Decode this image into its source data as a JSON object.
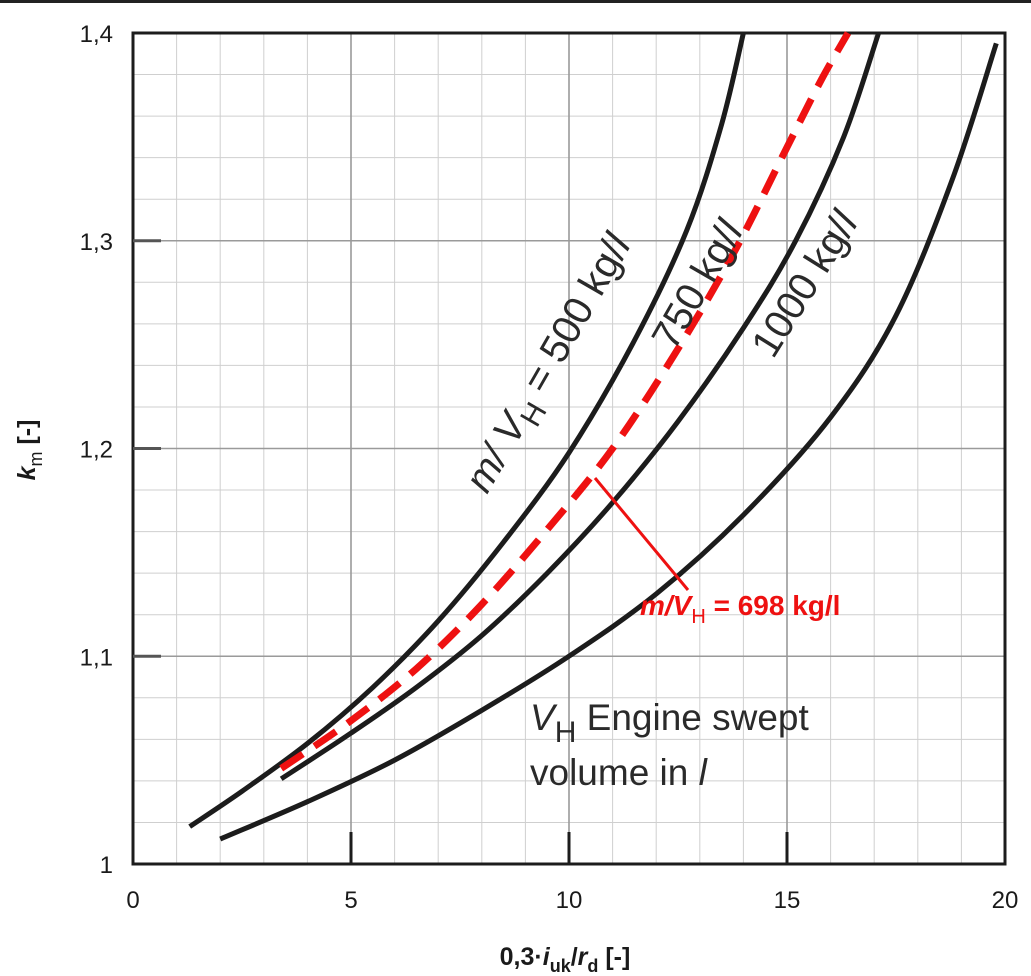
{
  "chart_data": {
    "type": "line",
    "xlabel_parts": {
      "prefix": "0,3·",
      "i": "i",
      "i_sub": "uk",
      "slash": "/",
      "r": "r",
      "r_sub": "d",
      "unit": " [-]"
    },
    "ylabel_parts": {
      "k": "k",
      "k_sub": "m",
      "unit": " [-]"
    },
    "xlim": [
      0,
      20
    ],
    "ylim": [
      1,
      1.4
    ],
    "x_ticks": [
      "0",
      "5",
      "10",
      "15",
      "20"
    ],
    "y_ticks": [
      "1",
      "1,1",
      "1,2",
      "1,3",
      "1,4"
    ],
    "grid": true,
    "series": [
      {
        "name": "500 kg/l",
        "color": "#1c1c1c",
        "style": "solid",
        "x": [
          1.3,
          2.5,
          4,
          5.5,
          7,
          8.5,
          10,
          11.5,
          12.7,
          13.5,
          14.0
        ],
        "y": [
          1.018,
          1.035,
          1.058,
          1.085,
          1.117,
          1.155,
          1.198,
          1.252,
          1.305,
          1.356,
          1.4
        ]
      },
      {
        "name": "750 kg/l",
        "color": "#1c1c1c",
        "style": "solid",
        "x": [
          3.4,
          5,
          6.5,
          8,
          9.5,
          11,
          12.5,
          14,
          15.2,
          16.3,
          17.1
        ],
        "y": [
          1.041,
          1.063,
          1.085,
          1.11,
          1.14,
          1.174,
          1.213,
          1.258,
          1.3,
          1.35,
          1.4
        ]
      },
      {
        "name": "1000 kg/l",
        "color": "#1c1c1c",
        "style": "solid",
        "x": [
          2.0,
          4,
          6,
          8,
          10,
          12,
          14,
          16,
          17.5,
          18.8,
          19.8
        ],
        "y": [
          1.012,
          1.03,
          1.05,
          1.074,
          1.1,
          1.13,
          1.168,
          1.215,
          1.264,
          1.33,
          1.395
        ]
      },
      {
        "name": "698 kg/l",
        "color": "#ee1111",
        "style": "dashed",
        "x": [
          3.4,
          5,
          6.5,
          8,
          9.5,
          11,
          12.5,
          13.8,
          15.0,
          15.8,
          16.4
        ],
        "y": [
          1.046,
          1.069,
          1.094,
          1.125,
          1.161,
          1.2,
          1.248,
          1.295,
          1.345,
          1.378,
          1.4
        ]
      }
    ],
    "curve_labels": [
      {
        "series": "500 kg/l",
        "text": "m/ V_H = 500 kg/l"
      },
      {
        "series": "750 kg/l",
        "text": "750 kg/l"
      },
      {
        "series": "1000 kg/l",
        "text": "1000 kg/l"
      }
    ],
    "annotations": {
      "red_label": {
        "m": "m/V",
        "sub": "H",
        "rest": " = 698 kg/l",
        "points_to": {
          "x": 10.6,
          "y": 1.18
        }
      },
      "note_line1": {
        "v": "V",
        "sub": "H",
        "rest": " Engine swept"
      },
      "note_line2": {
        "text": "volume in ",
        "unit": "l"
      }
    },
    "curve_label_parts": {
      "c500": {
        "m": "m/ V",
        "sub": "H",
        "rest": " = 500 kg/",
        "unit": "l"
      },
      "c750": {
        "text": "750 kg/",
        "unit": "l"
      },
      "c1000": {
        "text": "1000 kg/",
        "unit": "l"
      }
    }
  }
}
